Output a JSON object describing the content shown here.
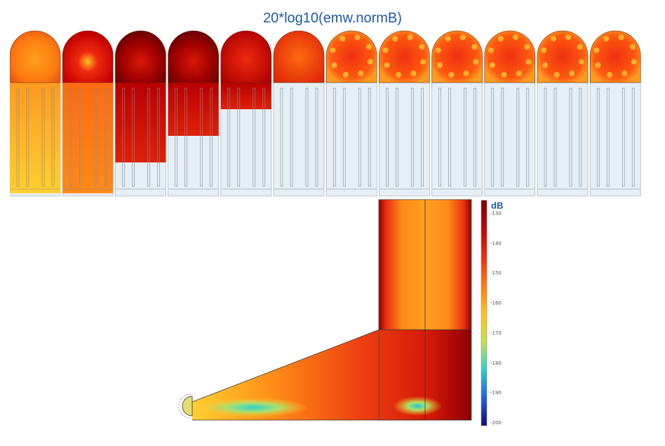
{
  "title": "20*log10(emw.normB)",
  "colorbar": {
    "unit": "dB",
    "ticks": [
      "-130",
      "-140",
      "-150",
      "-160",
      "-170",
      "-180",
      "-190",
      "-200"
    ],
    "colors": [
      "#7a0000",
      "#c40000",
      "#ee2a10",
      "#ff7a10",
      "#ffc020",
      "#c8e050",
      "#30d0d0",
      "#2060e0",
      "#101070"
    ]
  },
  "frames": [
    {
      "fill_level": 1.0,
      "cap": "orange",
      "tube": "orange-yellow"
    },
    {
      "fill_level": 1.0,
      "cap": "red-hot-center",
      "tube": "orange"
    },
    {
      "fill_level": 0.75,
      "cap": "dark-red",
      "tube": "red"
    },
    {
      "fill_level": 0.5,
      "cap": "dark-red",
      "tube": "red"
    },
    {
      "fill_level": 0.25,
      "cap": "red",
      "tube": "red"
    },
    {
      "fill_level": 0.0,
      "cap": "orange-red",
      "tube": "empty"
    },
    {
      "fill_level": 0.0,
      "cap": "spotted",
      "tube": "empty"
    },
    {
      "fill_level": 0.0,
      "cap": "spotted",
      "tube": "empty"
    },
    {
      "fill_level": 0.0,
      "cap": "spotted",
      "tube": "empty"
    },
    {
      "fill_level": 0.0,
      "cap": "spotted",
      "tube": "empty"
    },
    {
      "fill_level": 0.0,
      "cap": "spotted",
      "tube": "empty"
    },
    {
      "fill_level": 0.0,
      "cap": "spotted",
      "tube": "empty"
    }
  ]
}
